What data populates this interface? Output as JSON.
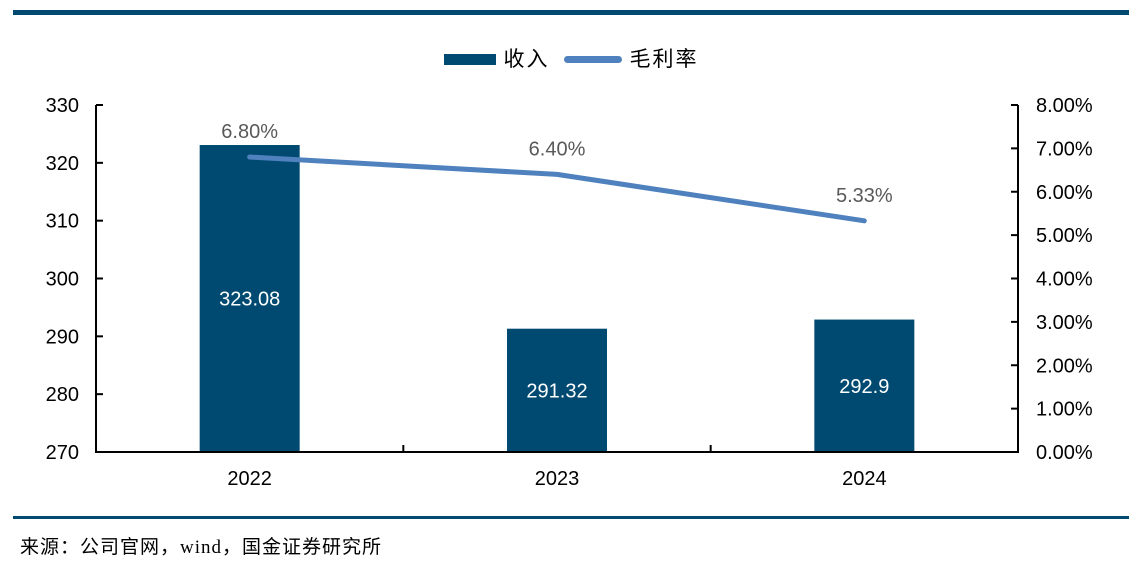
{
  "chart_data": {
    "type": "combo",
    "categories": [
      "2022",
      "2023",
      "2024"
    ],
    "series": [
      {
        "name": "收入",
        "type": "bar",
        "axis": "left",
        "values": [
          323.08,
          291.32,
          292.9
        ],
        "labels": [
          "323.08",
          "291.32",
          "292.9"
        ],
        "color": "#004a72",
        "label_color": "#ffffff"
      },
      {
        "name": "毛利率",
        "type": "line",
        "axis": "right",
        "values": [
          6.8,
          6.4,
          5.33
        ],
        "labels": [
          "6.80%",
          "6.40%",
          "5.33%"
        ],
        "color": "#4e81bd",
        "label_color": "#595959"
      }
    ],
    "left_axis": {
      "min": 270,
      "max": 330,
      "step": 10,
      "tick_labels": [
        "270",
        "280",
        "290",
        "300",
        "310",
        "320",
        "330"
      ]
    },
    "right_axis": {
      "min": 0,
      "max": 8,
      "step": 1,
      "tick_labels": [
        "0.00%",
        "1.00%",
        "2.00%",
        "3.00%",
        "4.00%",
        "5.00%",
        "6.00%",
        "7.00%",
        "8.00%"
      ]
    },
    "grid": false,
    "legend_position": "top",
    "title": ""
  },
  "legend": {
    "revenue_label": "收入",
    "margin_label": "毛利率"
  },
  "footer": {
    "source": "来源：公司官网，wind，国金证券研究所"
  },
  "colors": {
    "bar": "#004a72",
    "line": "#4e81bd",
    "rule": "#004a72",
    "data_label_gray": "#595959",
    "axis_line": "#000000",
    "axis_text": "#000000"
  }
}
